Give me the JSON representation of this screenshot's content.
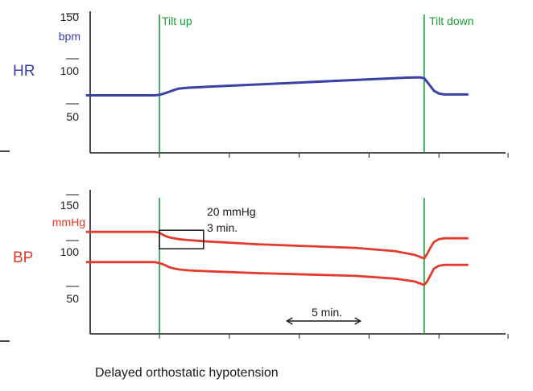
{
  "caption": "Delayed orthostatic hypotension",
  "colors": {
    "hr": "#3a40a8",
    "bp": "#e23b2e",
    "tilt": "#1f9a3a",
    "axis": "#1a1a1a"
  },
  "chart_data": [
    {
      "type": "line",
      "panel": "HR",
      "ylabel": "HR",
      "unit": "bpm",
      "y_ticks": [
        "150",
        "100",
        "50"
      ],
      "x_unit": "min",
      "tilt_up_label": "Tilt up",
      "tilt_down_label": "Tilt down",
      "tilt_up_x": 0,
      "tilt_down_x": 27,
      "series": [
        {
          "x": [
            -7.5,
            -0.5,
            0,
            0.5,
            1,
            1.5,
            2,
            2.5,
            3,
            5,
            10,
            15,
            20,
            25,
            26.5,
            27,
            27.5,
            28,
            28.5,
            29,
            30,
            31.5
          ],
          "values": [
            71,
            71,
            71.5,
            73,
            75,
            77,
            78.5,
            79,
            79.5,
            80.5,
            83,
            85.5,
            88,
            90.5,
            91,
            90,
            83,
            76,
            73,
            72,
            72,
            72
          ]
        }
      ]
    },
    {
      "type": "line",
      "panel": "BP",
      "ylabel": "BP",
      "unit": "mmHg",
      "y_ticks": [
        "150",
        "100",
        "50"
      ],
      "x_unit": "min",
      "tilt_up_x": 0,
      "tilt_down_x": 27,
      "series": [
        {
          "x": [
            -7.5,
            -0.5,
            0,
            0.5,
            1,
            1.5,
            2,
            3,
            5,
            10,
            15,
            20,
            24,
            26,
            26.5,
            27,
            27.3,
            27.7,
            28,
            28.5,
            29,
            30,
            31.5
          ],
          "values": [
            120,
            120,
            119,
            116,
            114,
            113,
            112,
            111,
            109.5,
            106.5,
            104.5,
            102.5,
            99,
            95,
            93,
            91,
            96,
            104,
            109,
            112,
            113,
            113,
            113
          ]
        },
        {
          "x": [
            -7.5,
            -0.5,
            0,
            0.5,
            1,
            1.5,
            2,
            3,
            5,
            10,
            15,
            20,
            24,
            26,
            26.5,
            27,
            27.3,
            27.7,
            28,
            28.5,
            29,
            30,
            31.5
          ],
          "values": [
            87,
            87,
            86,
            84,
            81.5,
            80,
            79,
            78,
            77,
            75,
            73.5,
            72,
            69,
            66,
            64,
            62,
            66,
            74,
            80,
            83,
            84,
            84,
            84
          ]
        }
      ],
      "box_label_1": "20 mmHg",
      "box_label_2": "3 min.",
      "box_span_x": [
        0,
        4.5
      ],
      "box_span_y": [
        100,
        120
      ],
      "scale_bar_label": "5 min.",
      "scale_bar_x": [
        13,
        20.5
      ]
    }
  ]
}
